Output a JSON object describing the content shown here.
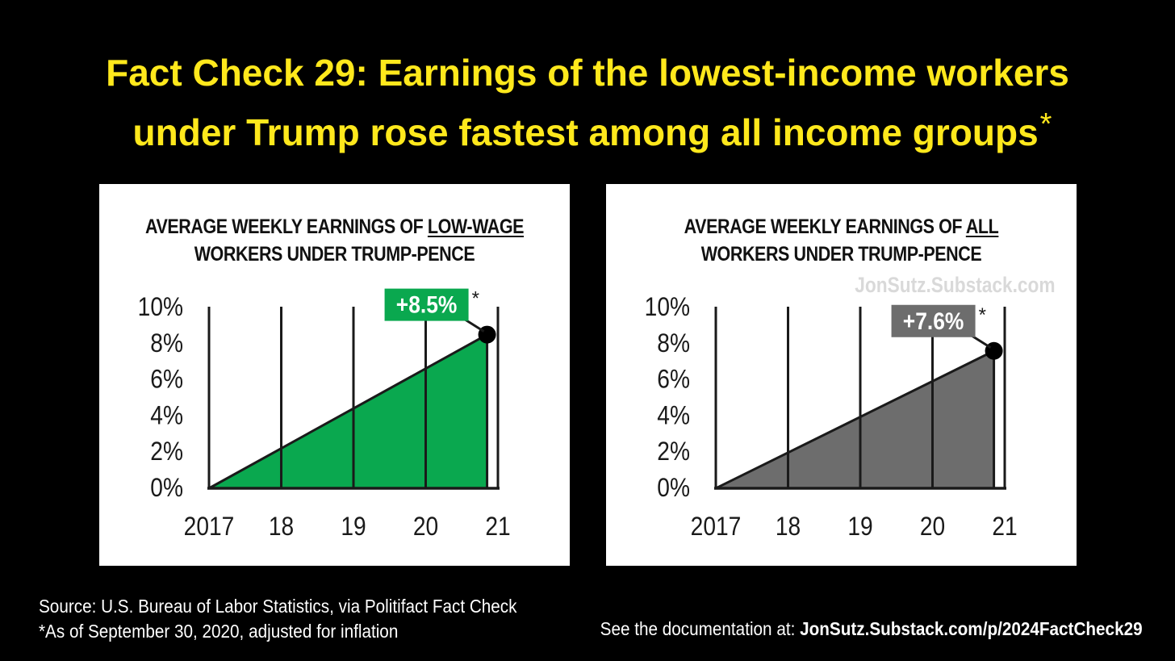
{
  "headline": {
    "line1": "Fact Check 29: Earnings of the lowest-income workers",
    "line2": "under Trump rose fastest among all income groups",
    "asterisk": "*",
    "color": "#ffe81c"
  },
  "chart_data": [
    {
      "type": "area",
      "title_line1_prefix": "AVERAGE WEEKLY EARNINGS OF ",
      "title_line1_emphasis": "LOW-WAGE",
      "title_line2": "WORKERS UNDER TRUMP-PENCE",
      "x": [
        2017,
        2020.85
      ],
      "y": [
        0,
        8.5
      ],
      "xtick_values": [
        2017,
        2018,
        2019,
        2020,
        2021
      ],
      "xtick_labels": [
        "2017",
        "18",
        "19",
        "20",
        "21"
      ],
      "ytick_values": [
        0,
        2,
        4,
        6,
        8,
        10
      ],
      "ytick_labels": [
        "0%",
        "2%",
        "4%",
        "6%",
        "8%",
        "10%"
      ],
      "xlim": [
        2017,
        2021.3
      ],
      "ylim": [
        0,
        10
      ],
      "annotation": "+8.5%",
      "annotation_asterisk": "*",
      "fill_color": "#0aa84f",
      "label_bg": "#0aa84f",
      "watermark": ""
    },
    {
      "type": "area",
      "title_line1_prefix": "AVERAGE WEEKLY EARNINGS OF ",
      "title_line1_emphasis": "ALL",
      "title_line2": "WORKERS UNDER TRUMP-PENCE",
      "x": [
        2017,
        2020.85
      ],
      "y": [
        0,
        7.6
      ],
      "xtick_values": [
        2017,
        2018,
        2019,
        2020,
        2021
      ],
      "xtick_labels": [
        "2017",
        "18",
        "19",
        "20",
        "21"
      ],
      "ytick_values": [
        0,
        2,
        4,
        6,
        8,
        10
      ],
      "ytick_labels": [
        "0%",
        "2%",
        "4%",
        "6%",
        "8%",
        "10%"
      ],
      "xlim": [
        2017,
        2021.3
      ],
      "ylim": [
        0,
        10
      ],
      "annotation": "+7.6%",
      "annotation_asterisk": "*",
      "fill_color": "#6d6d6d",
      "label_bg": "#6d6d6d",
      "watermark": "JonSutz.Substack.com"
    }
  ],
  "footer": {
    "source": "Source: U.S. Bureau of Labor Statistics, via Politifact Fact Check",
    "note": "*As of September 30, 2020, adjusted for inflation",
    "doc_prefix": "See the documentation at: ",
    "doc_link": "JonSutz.Substack.com/p/2024FactCheck29"
  }
}
